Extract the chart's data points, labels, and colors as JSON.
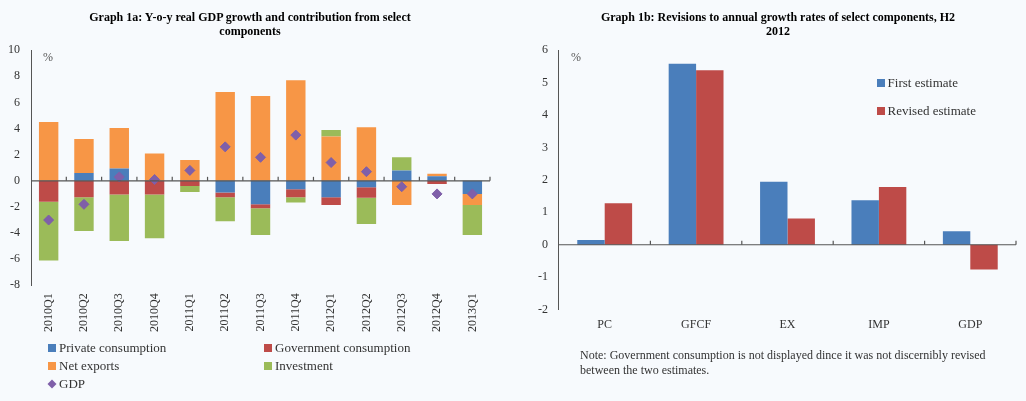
{
  "chart_data": [
    {
      "type": "bar",
      "title": "Graph 1a: Y-o-y real GDP growth and contribution from select components",
      "ylabel": "%",
      "stacked": true,
      "categories": [
        "2010Q1",
        "2010Q2",
        "2010Q3",
        "2010Q4",
        "2011Q1",
        "2011Q2",
        "2011Q3",
        "2011Q4",
        "2012Q1",
        "2012Q2",
        "2012Q3",
        "2012Q4",
        "2013Q1"
      ],
      "series": [
        {
          "name": "Private consumption",
          "color": "#4a7ebb",
          "values": [
            null,
            0.6,
            0.95,
            null,
            null,
            -0.9,
            -1.8,
            -0.65,
            -1.25,
            -0.5,
            0.8,
            0.35,
            -1.0
          ]
        },
        {
          "name": "Government consumption",
          "color": "#be4b48",
          "values": [
            -1.6,
            -1.25,
            -1.05,
            -1.05,
            -0.4,
            -0.35,
            -0.3,
            -0.6,
            -0.6,
            -0.8,
            null,
            -0.25,
            null
          ]
        },
        {
          "name": "Net exports",
          "color": "#f79646",
          "values": [
            4.5,
            2.6,
            3.1,
            2.1,
            1.6,
            6.8,
            6.5,
            7.7,
            3.4,
            4.1,
            -1.85,
            0.2,
            -0.85
          ]
        },
        {
          "name": "Investment",
          "color": "#9bbb59",
          "values": [
            -4.5,
            -2.6,
            -3.55,
            -3.35,
            -0.45,
            -1.85,
            -2.05,
            -0.4,
            0.5,
            -2.0,
            1.0,
            null,
            -2.3
          ]
        },
        {
          "name": "GDP",
          "type": "scatter",
          "marker": "diamond",
          "color": "#7f5fa9",
          "values": [
            -3.0,
            -1.8,
            0.3,
            0.1,
            0.8,
            2.6,
            1.8,
            3.5,
            1.4,
            0.7,
            -0.45,
            -1.0,
            -1.0
          ]
        }
      ],
      "ylim": [
        -8,
        10
      ],
      "yticks": [
        -8,
        -6,
        -4,
        -2,
        0,
        2,
        4,
        6,
        8,
        10
      ],
      "legend": "bottom"
    },
    {
      "type": "bar",
      "title": "Graph 1b: Revisions to annual growth rates of select components, H2 2012",
      "ylabel": "%",
      "categories": [
        "PC",
        "GFCF",
        "EX",
        "IMP",
        "GDP"
      ],
      "series": [
        {
          "name": "First estimate",
          "color": "#4a7ebb",
          "values": [
            0.15,
            5.58,
            1.94,
            1.37,
            0.42
          ]
        },
        {
          "name": "Revised estimate",
          "color": "#be4b48",
          "values": [
            1.28,
            5.38,
            0.81,
            1.78,
            -0.76
          ]
        }
      ],
      "ylim": [
        -2,
        6
      ],
      "yticks": [
        -2,
        -1,
        0,
        1,
        2,
        3,
        4,
        5,
        6
      ],
      "legend": "top right",
      "annotations": [
        "Note: Government consumption is not displayed dince it was not discernibly revised between the two estimates."
      ]
    }
  ]
}
